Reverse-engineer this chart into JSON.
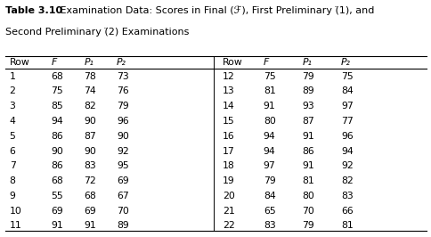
{
  "title_bold": "Table 3.10",
  "title_normal": "   Examination Data: Scores in Final (ℱ), First Preliminary (̈1), and",
  "title_line2": "Second Preliminary (̈2) Examinations",
  "left_headers": [
    "Row",
    "F",
    "P₁",
    "P₂"
  ],
  "right_headers": [
    "Row",
    "F",
    "P₁",
    "P₂"
  ],
  "left_data": [
    [
      "1",
      "68",
      "78",
      "73"
    ],
    [
      "2",
      "75",
      "74",
      "76"
    ],
    [
      "3",
      "85",
      "82",
      "79"
    ],
    [
      "4",
      "94",
      "90",
      "96"
    ],
    [
      "5",
      "86",
      "87",
      "90"
    ],
    [
      "6",
      "90",
      "90",
      "92"
    ],
    [
      "7",
      "86",
      "83",
      "95"
    ],
    [
      "8",
      "68",
      "72",
      "69"
    ],
    [
      "9",
      "55",
      "68",
      "67"
    ],
    [
      "10",
      "69",
      "69",
      "70"
    ],
    [
      "11",
      "91",
      "91",
      "89"
    ]
  ],
  "right_data": [
    [
      "12",
      "75",
      "79",
      "75"
    ],
    [
      "13",
      "81",
      "89",
      "84"
    ],
    [
      "14",
      "91",
      "93",
      "97"
    ],
    [
      "15",
      "80",
      "87",
      "77"
    ],
    [
      "16",
      "94",
      "91",
      "96"
    ],
    [
      "17",
      "94",
      "86",
      "94"
    ],
    [
      "18",
      "97",
      "91",
      "92"
    ],
    [
      "19",
      "79",
      "81",
      "82"
    ],
    [
      "20",
      "84",
      "80",
      "83"
    ],
    [
      "21",
      "65",
      "70",
      "66"
    ],
    [
      "22",
      "83",
      "79",
      "81"
    ]
  ],
  "bg": "#ffffff",
  "fg": "#000000",
  "fs": 7.8,
  "title_fs": 8.0
}
